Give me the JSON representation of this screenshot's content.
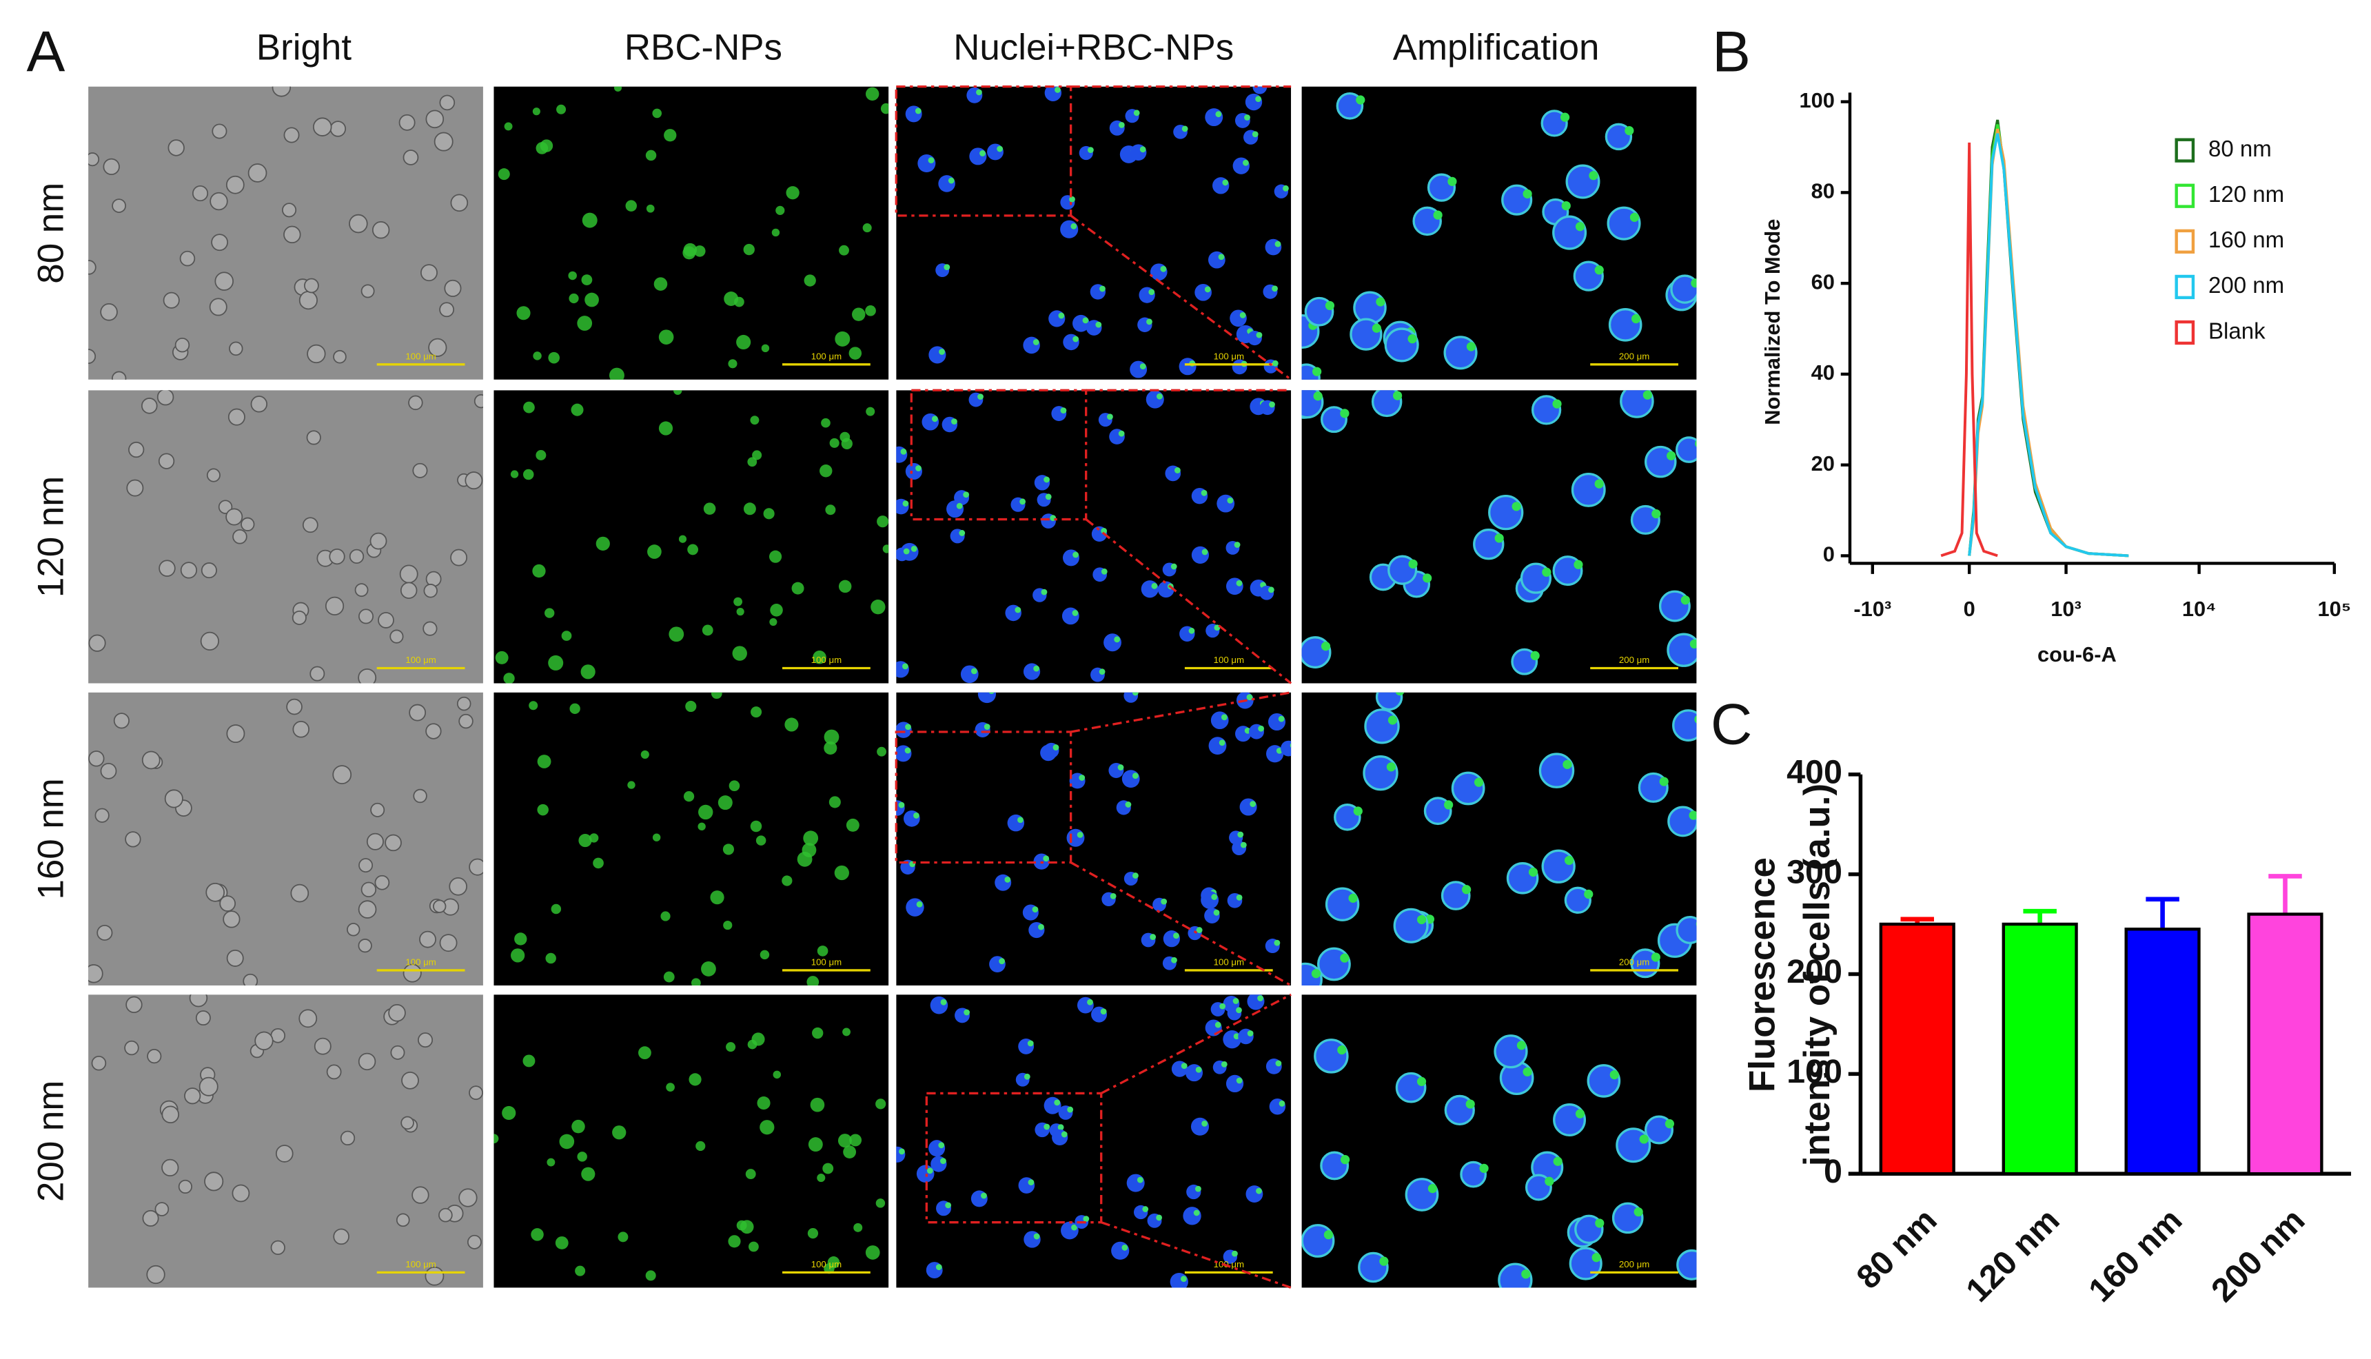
{
  "panel_labels": [
    "A",
    "B",
    "C"
  ],
  "panel_a": {
    "column_headers": [
      "Bright",
      "RBC-NPs",
      "Nuclei+RBC-NPs",
      "Amplification"
    ],
    "row_labels": [
      "80 nm",
      "120 nm",
      "160 nm",
      "200 nm"
    ],
    "scale_bar_labels": [
      "100 μm",
      "100 μm",
      "100 μm",
      "200 μm"
    ]
  },
  "chart_data": [
    {
      "type": "line",
      "xscale": "biex",
      "xlabel": "cou-6-A",
      "ylabel": "Normalized To Mode",
      "xlim": [
        -1500,
        100000
      ],
      "ylim": [
        0,
        100
      ],
      "xticks": [
        {
          "value": -1000,
          "label": "-10³"
        },
        0,
        {
          "value": 1000,
          "label": "10³"
        },
        {
          "value": 10000,
          "label": "10⁴"
        },
        {
          "value": 100000,
          "label": "10⁵"
        }
      ],
      "yticks": [
        0,
        20,
        40,
        60,
        80,
        100
      ],
      "legend": "upper right",
      "series": [
        {
          "name": "80 nm",
          "color": "#1d6e1d",
          "x": [
            0,
            30,
            60,
            90,
            120,
            160,
            200,
            250,
            320,
            420,
            550,
            750,
            1000,
            1500,
            3000
          ],
          "values": [
            0,
            10,
            30,
            35,
            60,
            90,
            96,
            85,
            60,
            30,
            14,
            5,
            2,
            0.5,
            0
          ]
        },
        {
          "name": "120 nm",
          "color": "#33e633",
          "x": [
            0,
            30,
            60,
            90,
            120,
            160,
            200,
            250,
            320,
            420,
            550,
            750,
            1000,
            1500,
            3000
          ],
          "values": [
            0,
            9,
            28,
            34,
            58,
            88,
            95,
            86,
            62,
            32,
            15,
            6,
            2,
            0.5,
            0
          ]
        },
        {
          "name": "160 nm",
          "color": "#f0a040",
          "x": [
            0,
            30,
            60,
            90,
            120,
            160,
            200,
            250,
            320,
            420,
            550,
            750,
            1000,
            1500,
            3000
          ],
          "values": [
            0,
            8,
            27,
            33,
            56,
            86,
            94,
            87,
            63,
            33,
            16,
            6,
            2,
            0.5,
            0
          ]
        },
        {
          "name": "200 nm",
          "color": "#22c8ee",
          "x": [
            0,
            30,
            60,
            90,
            120,
            160,
            200,
            250,
            320,
            420,
            550,
            750,
            1000,
            1500,
            3000
          ],
          "values": [
            0,
            9,
            29,
            34,
            57,
            87,
            93,
            85,
            61,
            31,
            15,
            5,
            2,
            0.5,
            0
          ]
        },
        {
          "name": "Blank",
          "color": "#ee3333",
          "x": [
            -200,
            -100,
            -50,
            -20,
            0,
            20,
            50,
            100,
            200
          ],
          "values": [
            0,
            1,
            5,
            40,
            91,
            40,
            5,
            1,
            0
          ]
        }
      ]
    },
    {
      "type": "bar",
      "ylabel": [
        "Fluorescence",
        "intensity of cells (a.u.)"
      ],
      "categories": [
        "80 nm",
        "120 nm",
        "160 nm",
        "200 nm"
      ],
      "values": [
        250,
        250,
        245,
        260
      ],
      "errors": [
        5,
        13,
        30,
        38
      ],
      "colors": [
        "#ff0000",
        "#00ff00",
        "#0000ff",
        "#ff44dd"
      ],
      "ylim": [
        0,
        400
      ],
      "yticks": [
        0,
        100,
        200,
        300,
        400
      ]
    }
  ]
}
